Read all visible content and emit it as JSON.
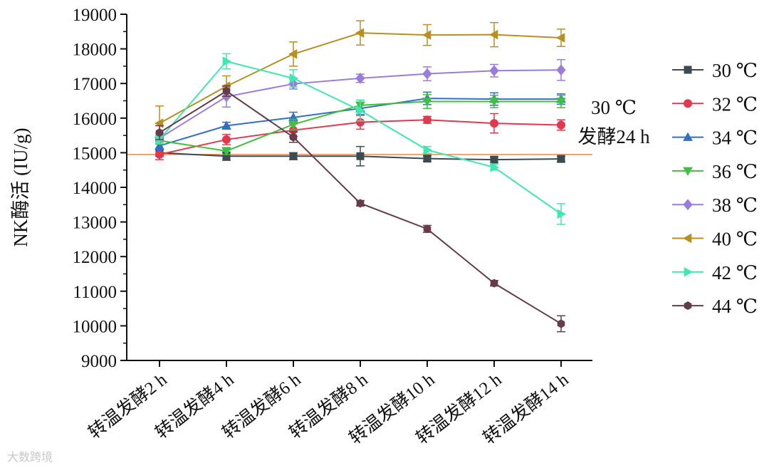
{
  "chart_data": {
    "type": "line",
    "ylabel": "NK酶活 (IU/g)",
    "xlabel": "",
    "ylim": [
      9000,
      19000
    ],
    "yticks": [
      9000,
      10000,
      11000,
      12000,
      13000,
      14000,
      15000,
      16000,
      17000,
      18000,
      19000
    ],
    "categories": [
      "转温发酵2 h",
      "转温发酵4 h",
      "转温发酵6 h",
      "转温发酵8 h",
      "转温发酵10 h",
      "转温发酵12 h",
      "转温发酵14 h"
    ],
    "reference_line": {
      "y": 14950,
      "color": "#e8894a"
    },
    "annotation": {
      "lines": [
        "30 ℃",
        "发酵24 h"
      ]
    },
    "legend_position": "right",
    "series": [
      {
        "name": "30 ℃",
        "color": "#3c4b52",
        "marker": "square",
        "values": [
          15000,
          14900,
          14900,
          14900,
          14830,
          14800,
          14820
        ],
        "errors": [
          100,
          120,
          100,
          280,
          80,
          80,
          80
        ]
      },
      {
        "name": "32 ℃",
        "color": "#e0394f",
        "marker": "circle",
        "values": [
          14950,
          15380,
          15650,
          15880,
          15950,
          15850,
          15800
        ],
        "errors": [
          150,
          150,
          180,
          200,
          100,
          280,
          150
        ]
      },
      {
        "name": "34 ℃",
        "color": "#3070c8",
        "marker": "triangle-up",
        "values": [
          15200,
          15780,
          16020,
          16280,
          16570,
          16550,
          16550
        ],
        "errors": [
          120,
          100,
          150,
          180,
          180,
          180,
          150
        ]
      },
      {
        "name": "36 ℃",
        "color": "#40c040",
        "marker": "triangle-down",
        "values": [
          15350,
          15050,
          15820,
          16370,
          16480,
          16480,
          16480
        ],
        "errors": [
          100,
          100,
          150,
          150,
          200,
          180,
          180
        ]
      },
      {
        "name": "38 ℃",
        "color": "#9a7cdc",
        "marker": "diamond",
        "values": [
          15420,
          16620,
          16990,
          17150,
          17280,
          17370,
          17390
        ],
        "errors": [
          150,
          300,
          150,
          120,
          200,
          180,
          300
        ]
      },
      {
        "name": "40 ℃",
        "color": "#b89020",
        "marker": "triangle-left",
        "values": [
          15850,
          16920,
          17850,
          18460,
          18400,
          18410,
          18320
        ],
        "errors": [
          500,
          300,
          350,
          350,
          300,
          350,
          250
        ]
      },
      {
        "name": "42 ℃",
        "color": "#40e8b0",
        "marker": "triangle-right",
        "values": [
          15380,
          17640,
          17150,
          16220,
          15080,
          14580,
          13230
        ],
        "errors": [
          120,
          220,
          250,
          300,
          100,
          80,
          300
        ]
      },
      {
        "name": "44 ℃",
        "color": "#663c4c",
        "marker": "hexagon",
        "values": [
          15580,
          16780,
          15450,
          13540,
          12800,
          11230,
          10060
        ],
        "errors": [
          200,
          150,
          150,
          80,
          100,
          80,
          230
        ]
      }
    ]
  },
  "watermark": "大数跨境"
}
